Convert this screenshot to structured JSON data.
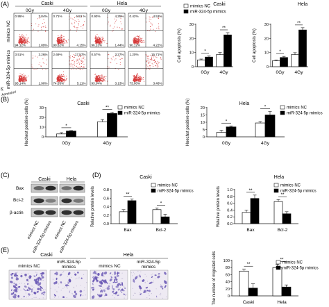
{
  "panel_labels": {
    "A": "(A)",
    "B": "(B)",
    "C": "(C)",
    "D": "(D)",
    "E": "(E)"
  },
  "flow": {
    "col_headers": [
      "Caski",
      "Hela"
    ],
    "dose_headers": [
      "0Gy",
      "4Gy",
      "0Gy",
      "4Gy"
    ],
    "row_labels": [
      "mimics NC",
      "miR-324-5p mimics"
    ],
    "y_axis": "PI",
    "x_axis": "AnnexinV",
    "plots": [
      [
        "0.95%",
        "3.04%",
        "94.12%",
        "1.89%"
      ],
      [
        "0.71%",
        "4.52 %",
        "90.62%",
        "4.15%"
      ],
      [
        "0.93%",
        "4.25%",
        "96.23%",
        "1.44%"
      ],
      [
        "0.42%",
        "4.52%",
        "90.12%",
        "4.22%"
      ],
      [
        "3.51%",
        "3.26%",
        "93.14%",
        "1.90%"
      ],
      [
        "2.69%",
        "17.57%",
        "74.63%",
        "5.11%"
      ],
      [
        "0.57%",
        "3.27%",
        "93.04%",
        "3.13%"
      ],
      [
        "1.20%",
        "15.71%",
        "73.00%",
        "3.48%"
      ]
    ]
  },
  "legend": {
    "nc": "mimics NC",
    "mimic": "miR-324-5p mimics"
  },
  "colors": {
    "nc": "#ffffff",
    "mimic": "#000000",
    "dot_red": "#d63a3a",
    "stain": "#6b5ab5"
  },
  "chart_data": [
    {
      "id": "apop-caski",
      "type": "bar",
      "title": "Caski",
      "ylabel": "Cell apoptosis (%)",
      "ylim": [
        0,
        30
      ],
      "yticks": [
        0,
        10,
        20,
        30
      ],
      "categories": [
        "0Gy",
        "4Gy"
      ],
      "series": [
        {
          "name": "mimics NC",
          "values": [
            4.8,
            8.5
          ],
          "errors": [
            0.6,
            1.5
          ]
        },
        {
          "name": "miR-324-5p mimics",
          "values": [
            6.8,
            22.5
          ],
          "errors": [
            0.8,
            1.6
          ]
        }
      ],
      "sig": [
        "*",
        "**"
      ]
    },
    {
      "id": "apop-hela",
      "type": "bar",
      "title": "Hela",
      "ylabel": "Cell apoptosis (%)",
      "ylim": [
        0,
        30
      ],
      "yticks": [
        0,
        10,
        20,
        30
      ],
      "categories": [
        "0Gy",
        "4Gy"
      ],
      "series": [
        {
          "name": "mimics NC",
          "values": [
            4.2,
            8.5
          ],
          "errors": [
            0.6,
            1.4
          ]
        },
        {
          "name": "miR-324-5p mimics",
          "values": [
            6.5,
            26.0
          ],
          "errors": [
            0.8,
            1.6
          ]
        }
      ],
      "sig": [
        "*",
        "**"
      ]
    },
    {
      "id": "hoechst-caski",
      "type": "bar",
      "title": "Caski",
      "ylabel": "Hochest positive cells (%)",
      "ylim": [
        0,
        30
      ],
      "yticks": [
        0,
        10,
        20,
        30
      ],
      "categories": [
        "0Gy",
        "4Gy"
      ],
      "series": [
        {
          "name": "mimics NC",
          "values": [
            3.0,
            15.5
          ],
          "errors": [
            1.3,
            2.3
          ]
        },
        {
          "name": "miR-324-5p mimics",
          "values": [
            6.0,
            24.0
          ],
          "errors": [
            0.5,
            1.5
          ]
        }
      ],
      "sig": [
        "*",
        "**"
      ]
    },
    {
      "id": "hoechst-hela",
      "type": "bar",
      "title": "Hela",
      "ylabel": "Hoechst positive cells (%)",
      "ylim": [
        0,
        20
      ],
      "yticks": [
        0,
        5,
        10,
        15,
        20
      ],
      "categories": [
        "0Gy",
        "4Gy"
      ],
      "series": [
        {
          "name": "mimics NC",
          "values": [
            3.0,
            9.5
          ],
          "errors": [
            1.5,
            1.0
          ]
        },
        {
          "name": "miR-324-5p mimics",
          "values": [
            6.8,
            15.0
          ],
          "errors": [
            0.7,
            2.3
          ]
        }
      ],
      "sig": [
        "*",
        "*"
      ]
    },
    {
      "id": "protein-caski",
      "type": "bar",
      "title": "Caski",
      "ylabel": "Relative protein levels",
      "ylim": [
        0,
        0.8
      ],
      "yticks": [
        0.0,
        0.2,
        0.4,
        0.6,
        0.8
      ],
      "categories": [
        "Bax",
        "Bcl-2"
      ],
      "series": [
        {
          "name": "mimics NC",
          "values": [
            0.28,
            0.33
          ],
          "errors": [
            0.05,
            0.04
          ]
        },
        {
          "name": "miR-324-5p mimics",
          "values": [
            0.54,
            0.16
          ],
          "errors": [
            0.04,
            0.06
          ]
        }
      ],
      "sig": [
        "**",
        "*"
      ]
    },
    {
      "id": "protein-hela",
      "type": "bar",
      "title": "Hela",
      "ylabel": "Relative protein levels",
      "ylim": [
        0,
        1.0
      ],
      "yticks": [
        0.0,
        0.2,
        0.4,
        0.6,
        0.8,
        1.0
      ],
      "categories": [
        "Bax",
        "Bcl-2"
      ],
      "series": [
        {
          "name": "mimics NC",
          "values": [
            0.33,
            0.65
          ],
          "errors": [
            0.07,
            0.06
          ]
        },
        {
          "name": "miR-324-5p mimics",
          "values": [
            0.74,
            0.29
          ],
          "errors": [
            0.1,
            0.06
          ]
        }
      ],
      "sig": [
        "**",
        "**"
      ]
    },
    {
      "id": "migration",
      "type": "bar",
      "title": "",
      "ylabel": "The number of migrated cells",
      "ylim": [
        0,
        100
      ],
      "yticks": [
        0,
        20,
        40,
        60,
        80,
        100
      ],
      "categories": [
        "Caski",
        "Hela"
      ],
      "series": [
        {
          "name": "mimics NC",
          "values": [
            70,
            80
          ],
          "errors": [
            6,
            9
          ]
        },
        {
          "name": "miR-324-5p mimics",
          "values": [
            22,
            25
          ],
          "errors": [
            12,
            6
          ]
        }
      ],
      "sig": [
        "**",
        "**"
      ]
    }
  ],
  "blot": {
    "cell_lines": [
      "Caski",
      "Hela"
    ],
    "rows": [
      "Bax",
      "Bcl-2",
      "β-actin"
    ],
    "lanes": [
      "mimics NC",
      "miR-324-5p mimics",
      "mimics NC",
      "miR-324-5p mimics"
    ]
  },
  "migration_images": {
    "cell_lines": [
      "Caski",
      "Hela"
    ],
    "labels": [
      "mimics NC",
      "miR-324-5p mimics",
      "mimics NC",
      "miR-324-5p mimics"
    ]
  }
}
